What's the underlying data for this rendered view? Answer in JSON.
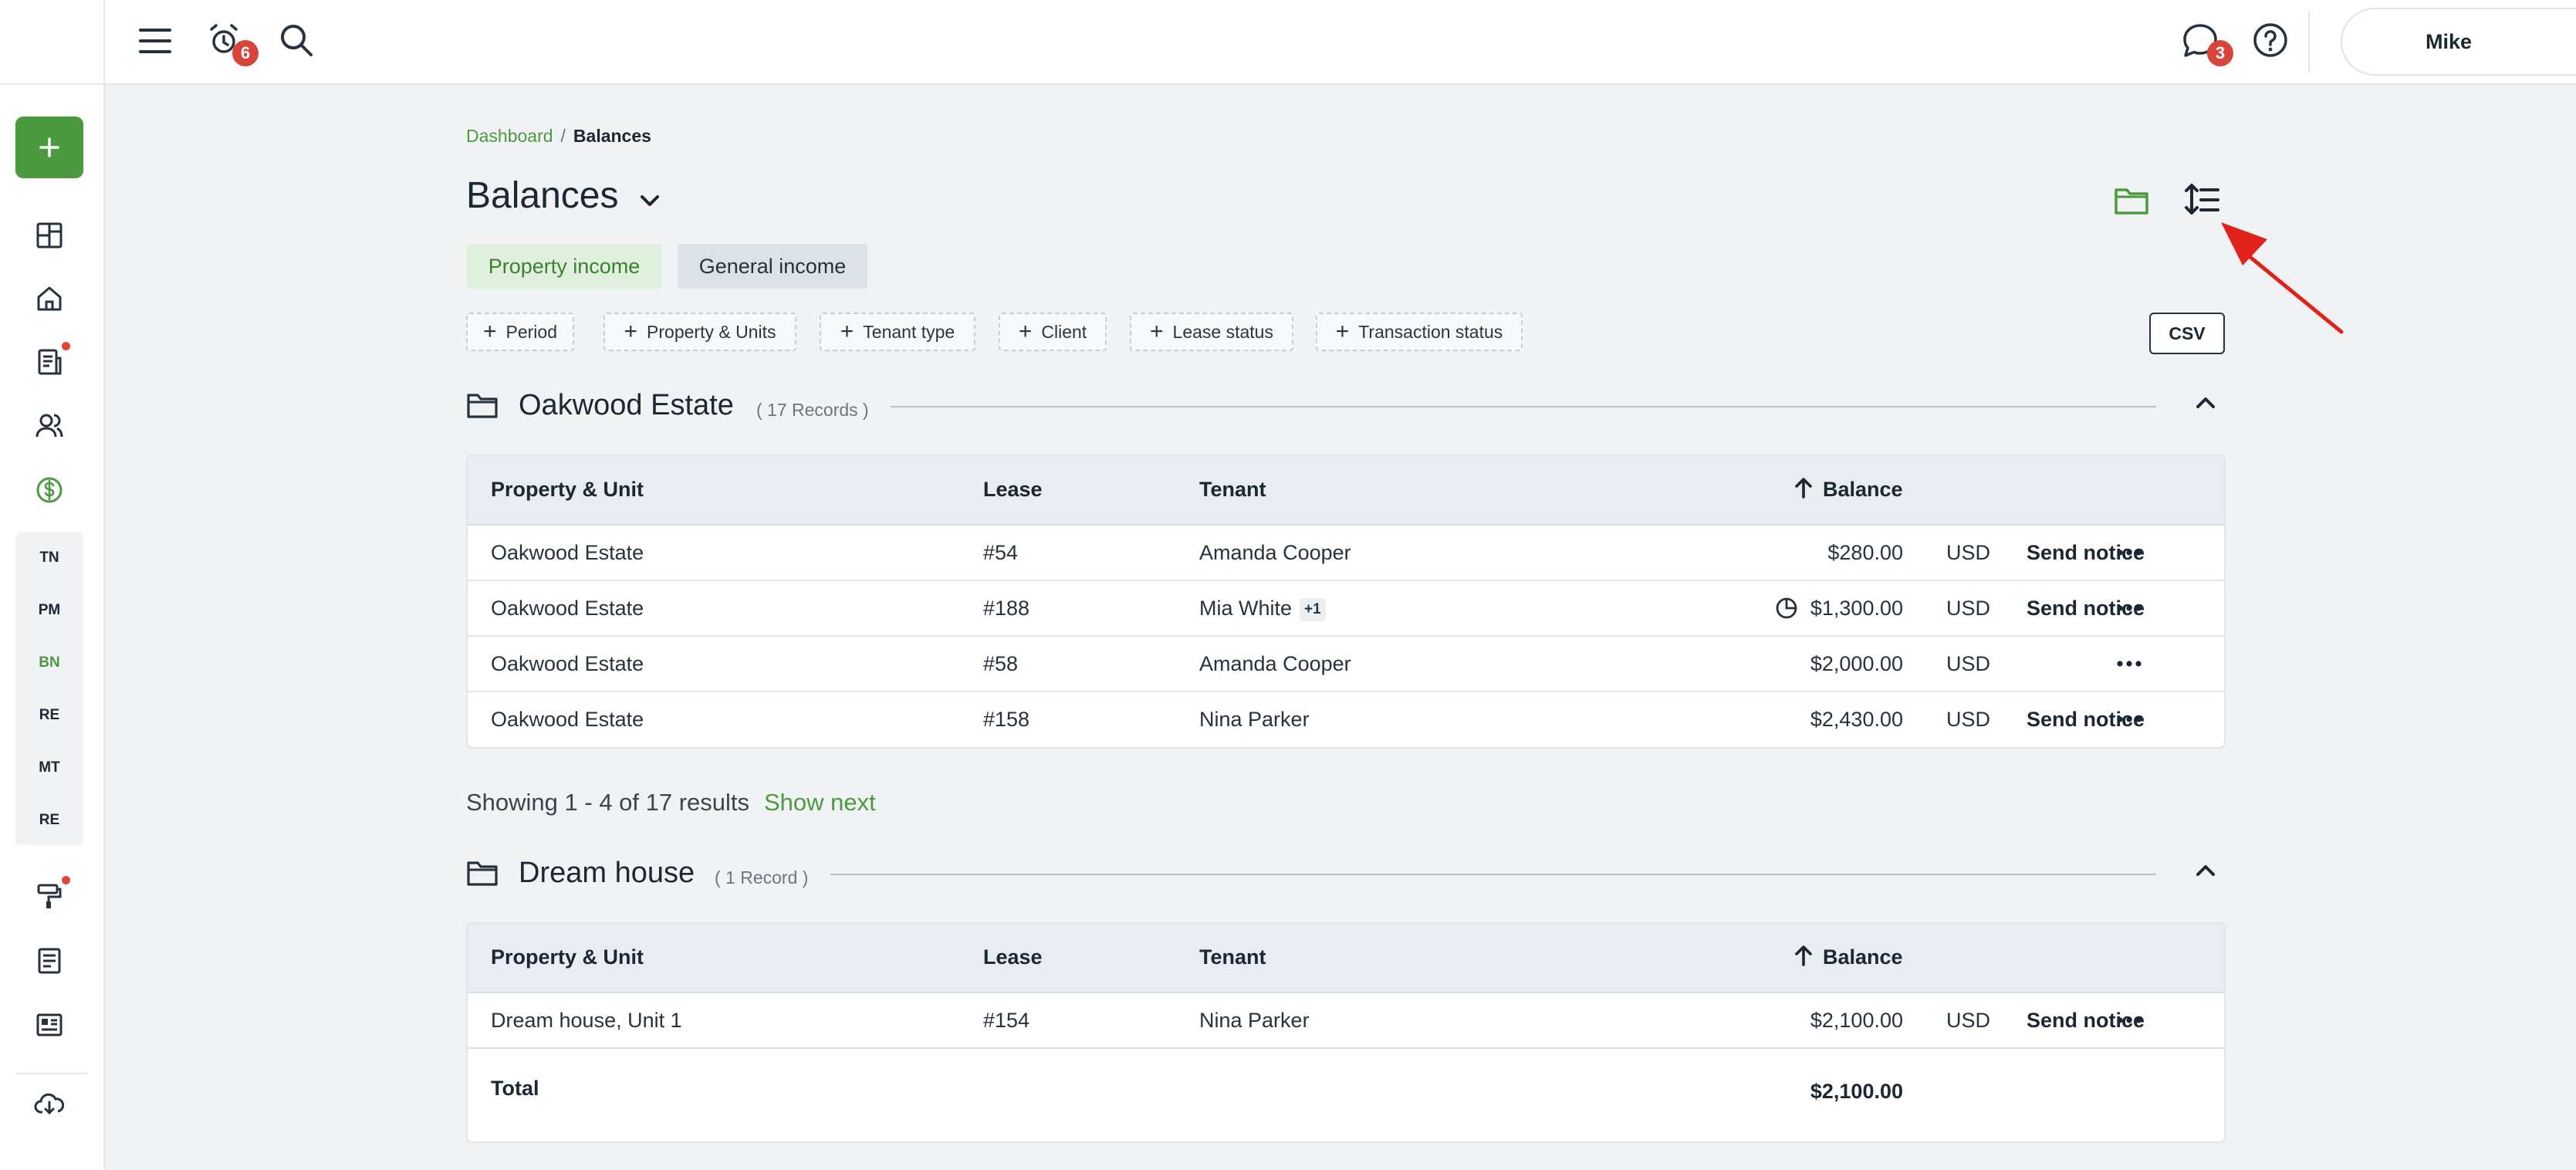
{
  "topbar": {
    "notifications_count": "6",
    "messages_count": "3",
    "user_name": "Mike"
  },
  "sidebar": {
    "codes": [
      "TN",
      "PM",
      "BN",
      "RE",
      "MT",
      "RE"
    ],
    "active_code": "BN"
  },
  "breadcrumb": {
    "root": "Dashboard",
    "separator": "/",
    "current": "Balances"
  },
  "page": {
    "title": "Balances"
  },
  "tabs": {
    "property_income": "Property income",
    "general_income": "General income"
  },
  "filters": {
    "items": [
      "Period",
      "Property & Units",
      "Tenant type",
      "Client",
      "Lease status",
      "Transaction status"
    ],
    "csv_label": "CSV"
  },
  "columns": {
    "property_unit": "Property & Unit",
    "lease": "Lease",
    "tenant": "Tenant",
    "balance": "Balance"
  },
  "groups": [
    {
      "title": "Oakwood Estate",
      "count_label": "( 17 Records )",
      "rows": [
        {
          "property": "Oakwood Estate",
          "lease": "#54",
          "tenant": "Amanda Cooper",
          "extra": "",
          "balance": "$280.00",
          "currency": "USD",
          "action": "Send notice"
        },
        {
          "property": "Oakwood Estate",
          "lease": "#188",
          "tenant": "Mia White",
          "extra": "+1",
          "balance": "$1,300.00",
          "currency": "USD",
          "action": "Send notice"
        },
        {
          "property": "Oakwood Estate",
          "lease": "#58",
          "tenant": "Amanda Cooper",
          "extra": "",
          "balance": "$2,000.00",
          "currency": "USD",
          "action": ""
        },
        {
          "property": "Oakwood Estate",
          "lease": "#158",
          "tenant": "Nina Parker",
          "extra": "",
          "balance": "$2,430.00",
          "currency": "USD",
          "action": "Send notice"
        }
      ],
      "showing": "Showing 1 - 4 of 17 results",
      "show_next": "Show next"
    },
    {
      "title": "Dream house",
      "count_label": "( 1 Record )",
      "rows": [
        {
          "property": "Dream house, Unit 1",
          "lease": "#154",
          "tenant": "Nina Parker",
          "extra": "",
          "balance": "$2,100.00",
          "currency": "USD",
          "action": "Send notice"
        }
      ],
      "total_label": "Total",
      "total_value": "$2,100.00"
    }
  ],
  "colors": {
    "accent_green": "#4c9a40",
    "badge_red": "#d9443a",
    "annotation_arrow": "#e0221a"
  },
  "icons": [
    "menu-icon",
    "alarm-icon",
    "search-icon",
    "chat-icon",
    "help-icon",
    "folder-icon",
    "sort-list-icon",
    "chevron-down-icon",
    "chevron-up-icon",
    "sort-arrow-up-icon",
    "pie-clock-icon",
    "more-icon"
  ]
}
